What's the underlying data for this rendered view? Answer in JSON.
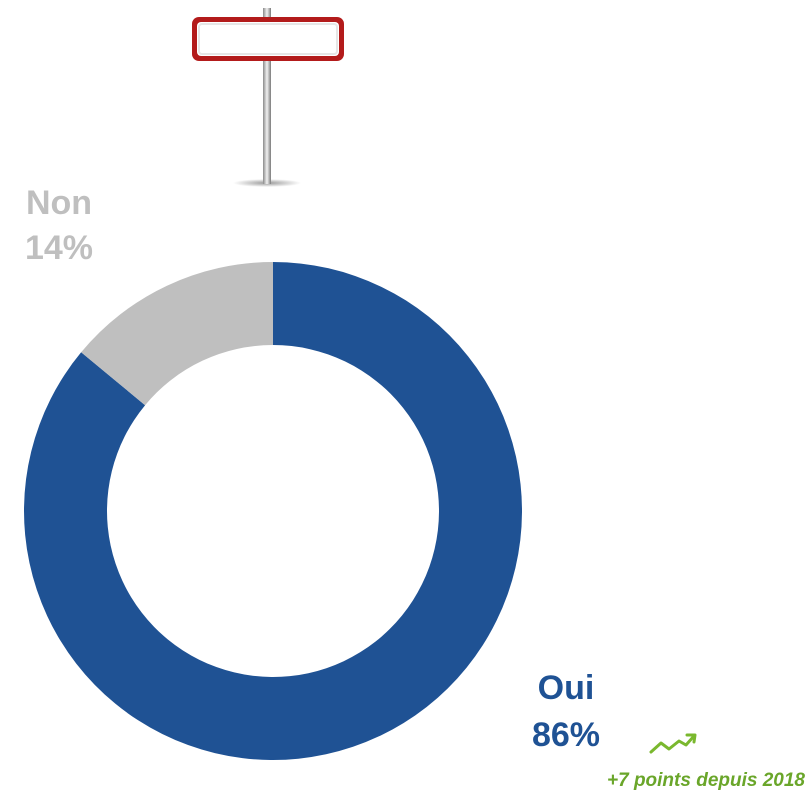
{
  "chart_data": {
    "type": "donut",
    "categories": [
      "Oui",
      "Non"
    ],
    "values": [
      86,
      14
    ],
    "value_labels": [
      "86%",
      "14%"
    ],
    "colors": [
      "#1f5294",
      "#bfbfbf"
    ],
    "annotation": "+7 points depuis 2018",
    "annotation_color": "#6aa62a"
  }
}
